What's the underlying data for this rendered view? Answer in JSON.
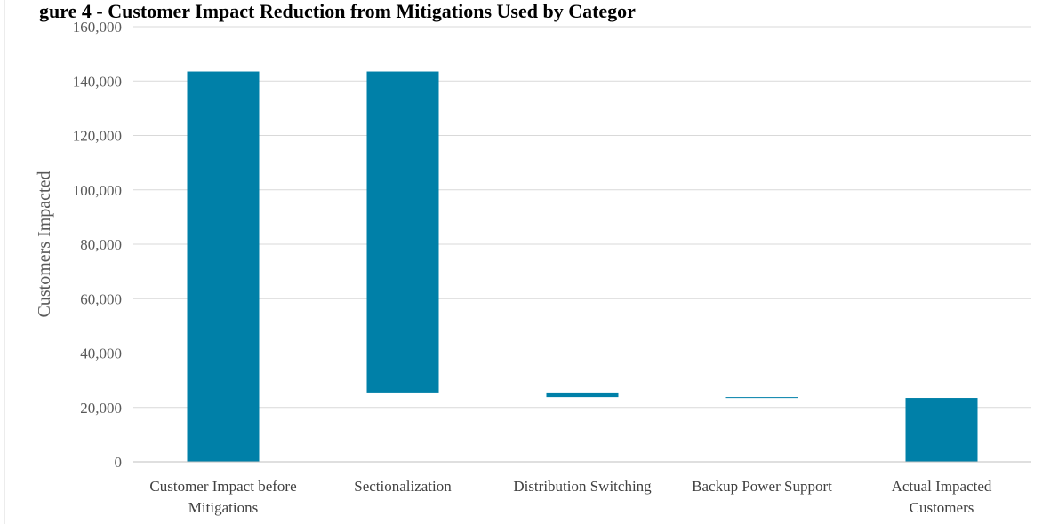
{
  "chart_data": {
    "type": "bar",
    "subtype": "waterfall",
    "title": "gure 4 - Customer Impact Reduction from Mitigations Used by Categor",
    "ylabel": "Customers Impacted",
    "xlabel": "",
    "ylim": [
      0,
      160000
    ],
    "yticks": [
      0,
      20000,
      40000,
      60000,
      80000,
      100000,
      120000,
      140000,
      160000
    ],
    "ytick_labels": [
      "0",
      "20,000",
      "40,000",
      "60,000",
      "80,000",
      "100,000",
      "120,000",
      "140,000",
      "160,000"
    ],
    "grid": true,
    "legend": "none",
    "categories": [
      "Customer Impact before Mitigations",
      "Sectionalization",
      "Distribution Switching",
      "Backup Power Support",
      "Actual Impacted Customers"
    ],
    "category_lines": [
      [
        "Customer Impact before",
        "Mitigations"
      ],
      [
        "Sectionalization"
      ],
      [
        "Distribution Switching"
      ],
      [
        "Backup Power Support"
      ],
      [
        "Actual Impacted",
        "Customers"
      ]
    ],
    "bars": [
      {
        "bottom": 0,
        "top": 143500
      },
      {
        "bottom": 25500,
        "top": 143500
      },
      {
        "bottom": 23800,
        "top": 25500
      },
      {
        "bottom": 23500,
        "top": 23800
      },
      {
        "bottom": 0,
        "top": 23500
      }
    ],
    "color": "#0080A8",
    "grid_color": "#D9D9D9",
    "axis_color": "#BFBFBF"
  }
}
